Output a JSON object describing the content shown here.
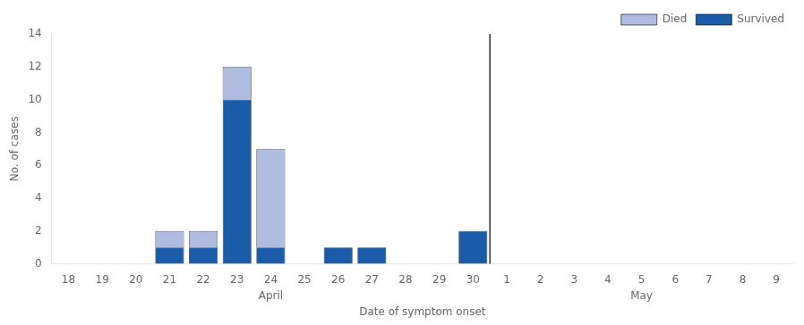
{
  "chart_data": {
    "type": "bar",
    "categories": [
      "18",
      "19",
      "20",
      "21",
      "22",
      "23",
      "24",
      "25",
      "26",
      "27",
      "28",
      "29",
      "30",
      "1",
      "2",
      "3",
      "4",
      "5",
      "6",
      "7",
      "8",
      "9"
    ],
    "series": [
      {
        "name": "Survived",
        "color": "#1a5ca8",
        "values": [
          0,
          0,
          0,
          1,
          1,
          10,
          1,
          0,
          1,
          1,
          0,
          0,
          2,
          0,
          0,
          0,
          0,
          0,
          0,
          0,
          0,
          0
        ]
      },
      {
        "name": "Died",
        "color": "#b0bce0",
        "values": [
          0,
          0,
          0,
          1,
          1,
          2,
          6,
          0,
          0,
          0,
          0,
          0,
          0,
          0,
          0,
          0,
          0,
          0,
          0,
          0,
          0,
          0
        ]
      }
    ],
    "stacked": true,
    "ylabel": "No. of cases",
    "xlabel": "Date of symptom onset",
    "ylim": [
      0,
      14
    ],
    "yticks": [
      0,
      2,
      4,
      6,
      8,
      10,
      12,
      14
    ],
    "grid": false,
    "legend": "upper right",
    "annotations": [
      {
        "text": "April",
        "categories": [
          "18",
          "30"
        ]
      },
      {
        "text": "May",
        "categories": [
          "1",
          "9"
        ]
      }
    ]
  }
}
